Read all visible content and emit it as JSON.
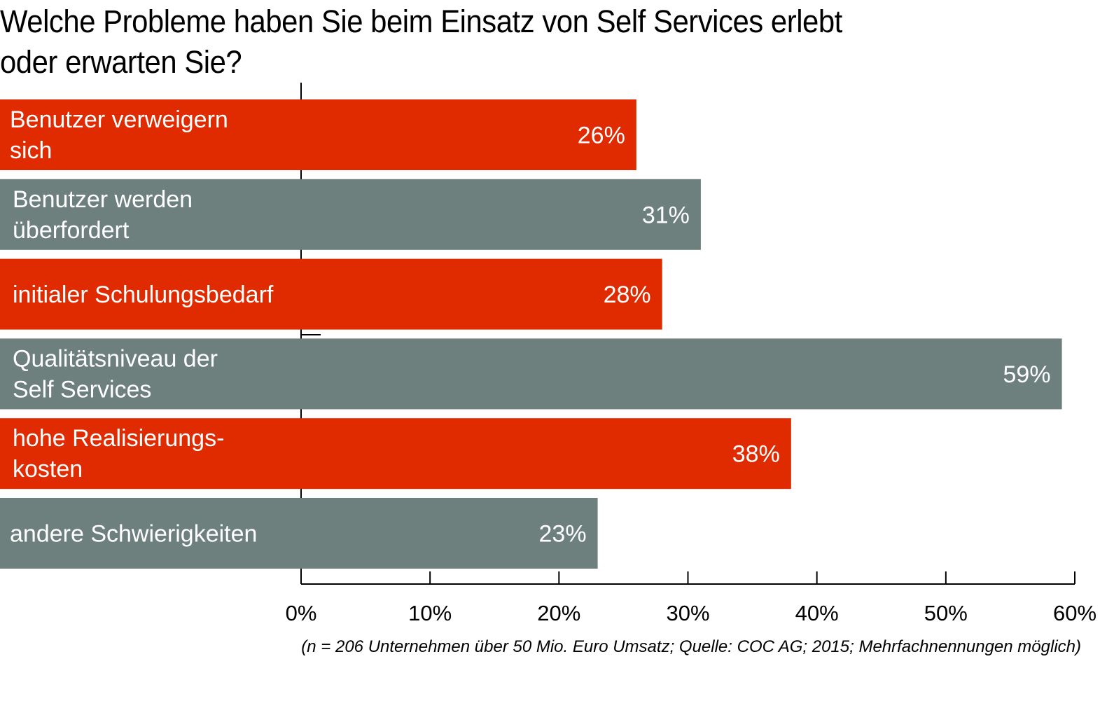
{
  "chart_data": {
    "type": "bar",
    "orientation": "horizontal",
    "title": "Welche Probleme haben Sie beim Einsatz von Self Services erlebt oder erwarten Sie?",
    "title_lines": [
      "Welche Probleme haben Sie beim Einsatz von Self Services erlebt",
      "oder erwarten Sie?"
    ],
    "categories": [
      "Benutzer verweigern sich",
      "Benutzer werden überfordert",
      "initialer Schulungsbedarf",
      "Qualitätsniveau der Self Services",
      "hohe Realisierungskosten",
      "andere Schwierigkeiten"
    ],
    "category_lines": [
      [
        "Benutzer verweigern",
        "sich"
      ],
      [
        "Benutzer werden",
        "überfordert"
      ],
      [
        "initialer Schulungsbedarf"
      ],
      [
        "Qualitätsniveau der",
        "Self Services"
      ],
      [
        "hohe Realisierungs-",
        "kosten"
      ],
      [
        "andere Schwierigkeiten"
      ]
    ],
    "values": [
      26,
      31,
      28,
      59,
      38,
      23
    ],
    "value_labels": [
      "26%",
      "31%",
      "28%",
      "59%",
      "38%",
      "23%"
    ],
    "bar_colors": [
      "#e02a00",
      "#6d807d",
      "#e02a00",
      "#6d807d",
      "#e02a00",
      "#6d807d"
    ],
    "xlabel": "",
    "ylabel": "",
    "xlim": [
      0,
      60
    ],
    "xticks": [
      0,
      10,
      20,
      30,
      40,
      50,
      60
    ],
    "xtick_labels": [
      "0%",
      "10%",
      "20%",
      "30%",
      "40%",
      "50%",
      "60%"
    ],
    "grid": false,
    "legend": null,
    "footnote": "(n = 206 Unternehmen über 50 Mio. Euro Umsatz; Quelle: COC AG; 2015; Mehrfachnennungen möglich)"
  }
}
